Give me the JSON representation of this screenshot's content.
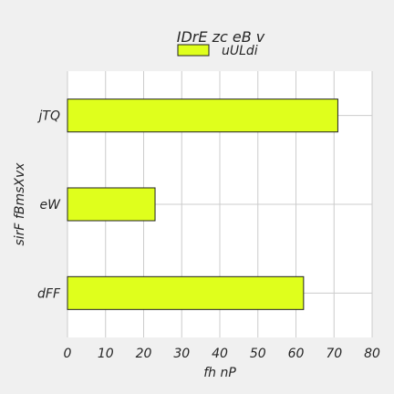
{
  "chart_data": {
    "type": "bar",
    "orientation": "horizontal",
    "title": "IDrE zc eB v",
    "xlabel": "fh nP",
    "ylabel": "sirF fBmsXvx",
    "categories": [
      "jTQ",
      "eW",
      "dFF"
    ],
    "series": [
      {
        "name": "uULdi",
        "values": [
          71,
          23,
          62
        ]
      }
    ],
    "xlim": [
      0,
      80
    ],
    "xticks": [
      "0",
      "10",
      "20",
      "30",
      "40",
      "50",
      "60",
      "70",
      "80"
    ],
    "grid": true,
    "legend": "top-center",
    "colors": {
      "bar": "#dfff1c",
      "bar_edge": "#222222",
      "plot_bg": "#ffffff",
      "grid": "#cccccc"
    }
  }
}
